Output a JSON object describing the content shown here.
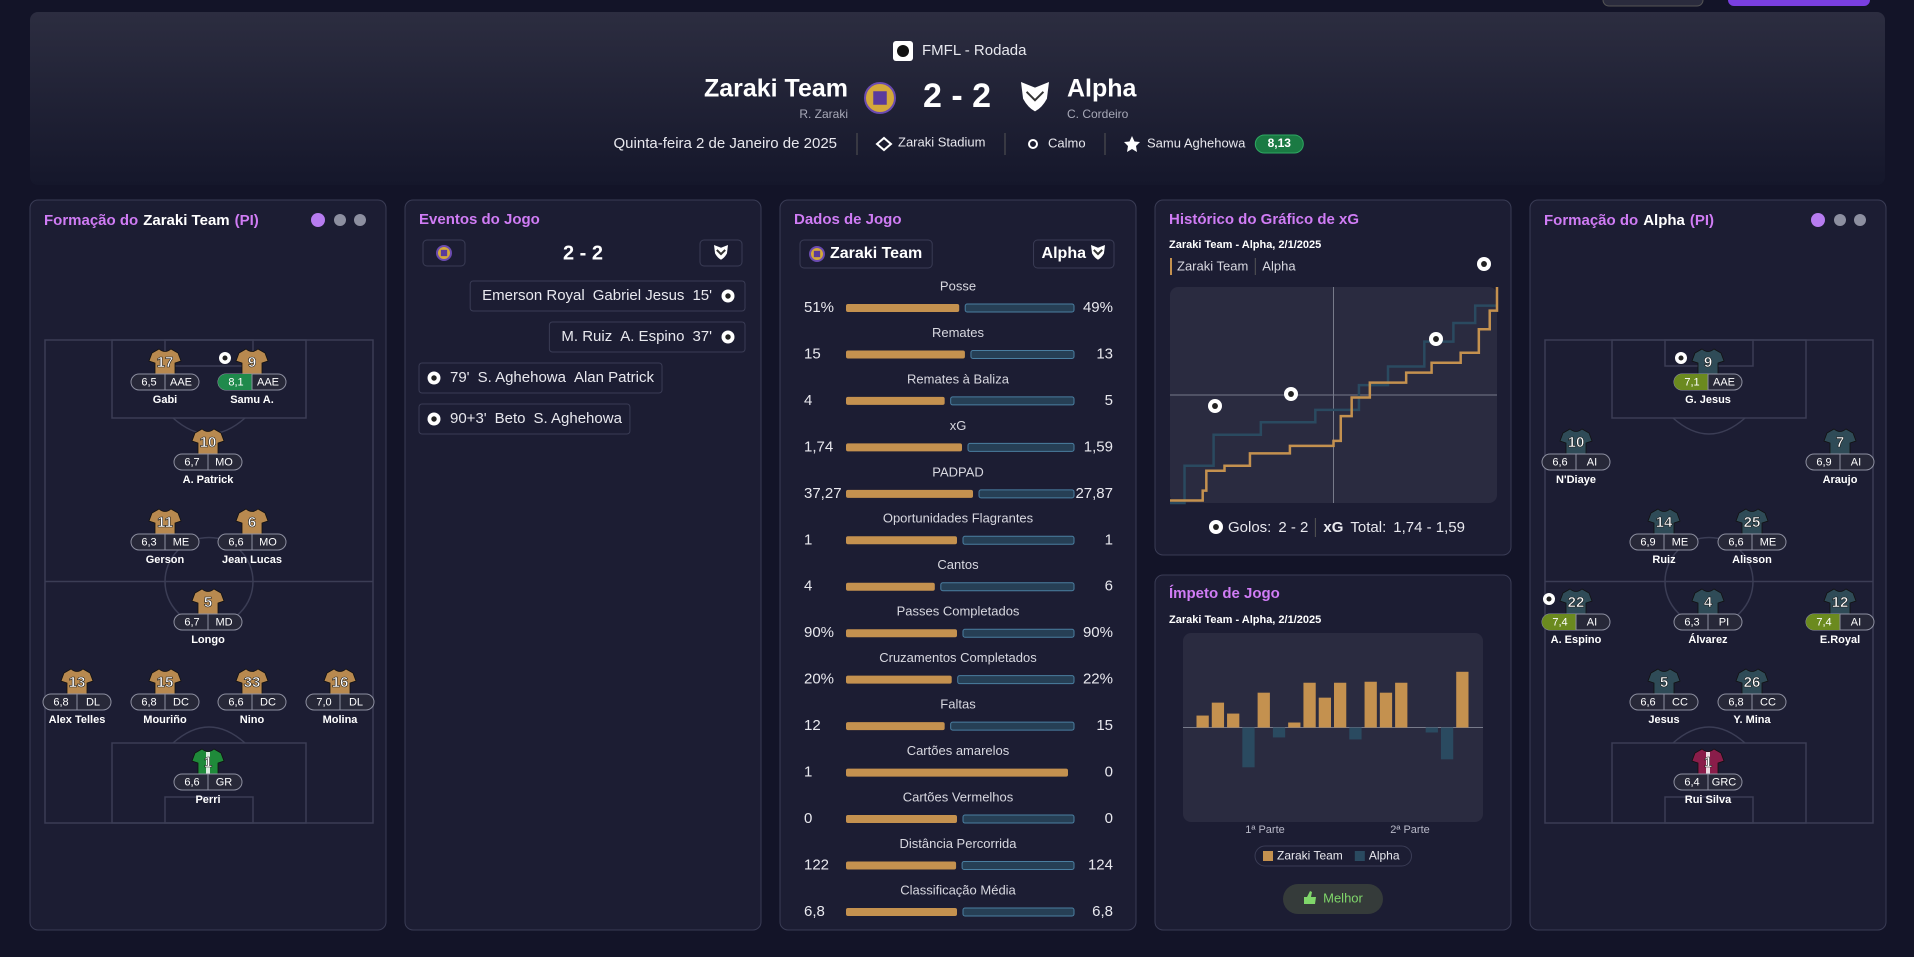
{
  "header": {
    "competition": "FMFL - Rodada",
    "home": {
      "name": "Zaraki Team",
      "manager": "R. Zaraki"
    },
    "score": "2 - 2",
    "away": {
      "name": "Alpha",
      "manager": "C. Cordeiro"
    },
    "date": "Quinta-feira 2 de Janeiro de 2025",
    "stadium": "Zaraki Stadium",
    "weather": "Calmo",
    "motm": "Samu Aghehowa",
    "motm_rating": "8,13"
  },
  "home_lineup": {
    "title": "Formação do",
    "team": "Zaraki Team",
    "formation": "(PI)",
    "kit": "#b8894f",
    "gk_kit": "#1f8a3a",
    "players": [
      {
        "number": "17",
        "rating": "6,5",
        "position": "AAE",
        "name": "Gabi"
      },
      {
        "number": "9",
        "rating": "8,1",
        "position": "AAE",
        "name": "Samu A.",
        "rating_color": "#1f8a4c"
      },
      {
        "number": "10",
        "rating": "6,7",
        "position": "MO",
        "name": "A. Patrick"
      },
      {
        "number": "11",
        "rating": "6,3",
        "position": "ME",
        "name": "Gerson"
      },
      {
        "number": "6",
        "rating": "6,6",
        "position": "MO",
        "name": "Jean Lucas"
      },
      {
        "number": "5",
        "rating": "6,7",
        "position": "MD",
        "name": "Longo"
      },
      {
        "number": "13",
        "rating": "6,8",
        "position": "DL",
        "name": "Alex Telles"
      },
      {
        "number": "15",
        "rating": "6,8",
        "position": "DC",
        "name": "Mouriño"
      },
      {
        "number": "33",
        "rating": "6,6",
        "position": "DC",
        "name": "Nino"
      },
      {
        "number": "16",
        "rating": "7,0",
        "position": "DL",
        "name": "Molina"
      },
      {
        "number": "1",
        "rating": "6,6",
        "position": "GR",
        "name": "Perri"
      }
    ]
  },
  "away_lineup": {
    "title": "Formação do",
    "team": "Alpha",
    "formation": "(PI)",
    "kit": "#2f4b57",
    "gk_kit": "#8a1d4a",
    "players": [
      {
        "number": "9",
        "rating": "7,1",
        "position": "AAE",
        "name": "G. Jesus",
        "rating_color": "#6b8a1f"
      },
      {
        "number": "10",
        "rating": "6,6",
        "position": "AI",
        "name": "N'Diaye"
      },
      {
        "number": "7",
        "rating": "6,9",
        "position": "AI",
        "name": "Araujo"
      },
      {
        "number": "14",
        "rating": "6,9",
        "position": "ME",
        "name": "Ruiz"
      },
      {
        "number": "25",
        "rating": "6,6",
        "position": "ME",
        "name": "Alisson"
      },
      {
        "number": "22",
        "rating": "7,4",
        "position": "AI",
        "name": "A. Espino",
        "rating_color": "#6b8a1f"
      },
      {
        "number": "4",
        "rating": "6,3",
        "position": "PI",
        "name": "Álvarez"
      },
      {
        "number": "12",
        "rating": "7,4",
        "position": "AI",
        "name": "E.Royal",
        "rating_color": "#6b8a1f"
      },
      {
        "number": "5",
        "rating": "6,6",
        "position": "CC",
        "name": "Jesus"
      },
      {
        "number": "26",
        "rating": "6,8",
        "position": "CC",
        "name": "Y. Mina"
      },
      {
        "number": "1",
        "rating": "6,4",
        "position": "GRC",
        "name": "Rui Silva"
      }
    ]
  },
  "events": {
    "title": "Eventos do Jogo",
    "score": "2 - 2",
    "away": [
      {
        "assist": "Emerson Royal",
        "player": "Gabriel Jesus",
        "minute": "15'"
      },
      {
        "assist": "M. Ruiz",
        "player": "A. Espino",
        "minute": "37'"
      }
    ],
    "home": [
      {
        "minute": "79'",
        "player": "S. Aghehowa",
        "assist": "Alan Patrick"
      },
      {
        "minute": "90+3'",
        "player": "Beto",
        "assist": "S. Aghehowa"
      }
    ]
  },
  "stats": {
    "title": "Dados de Jogo",
    "home": "Zaraki Team",
    "away": "Alpha",
    "home_color": "#c4914f",
    "away_color": "#263f55",
    "rows": [
      {
        "label": "Posse",
        "home": "51%",
        "away": "49%"
      },
      {
        "label": "Remates",
        "home": "15",
        "away": "13"
      },
      {
        "label": "Remates à Baliza",
        "home": "4",
        "away": "5"
      },
      {
        "label": "xG",
        "home": "1,74",
        "away": "1,59"
      },
      {
        "label": "PADPAD",
        "home": "37,27",
        "away": "27,87"
      },
      {
        "label": "Oportunidades Flagrantes",
        "home": "1",
        "away": "1"
      },
      {
        "label": "Cantos",
        "home": "4",
        "away": "6"
      },
      {
        "label": "Passes Completados",
        "home": "90%",
        "away": "90%"
      },
      {
        "label": "Cruzamentos Completados",
        "home": "20%",
        "away": "22%"
      },
      {
        "label": "Faltas",
        "home": "12",
        "away": "15"
      },
      {
        "label": "Cartões amarelos",
        "home": "1",
        "away": "0"
      },
      {
        "label": "Cartões Vermelhos",
        "home": "0",
        "away": "0"
      },
      {
        "label": "Distância Percorrida",
        "home": "122",
        "away": "124"
      },
      {
        "label": "Classificação Média",
        "home": "6,8",
        "away": "6,8"
      }
    ]
  },
  "xg": {
    "title": "Histórico do Gráfico de xG",
    "subtitle": "Zaraki Team - Alpha, 2/1/2025",
    "xlim": [
      0,
      90
    ],
    "ylim": [
      0,
      1.74
    ],
    "series": [
      {
        "name": "Zaraki Team",
        "color": "#c4914f",
        "x": [
          0,
          9,
          9,
          10,
          10,
          15,
          15,
          22,
          22,
          33,
          33,
          45,
          45,
          47,
          47,
          50,
          50,
          55,
          55,
          65,
          65,
          72,
          72,
          80,
          80,
          85,
          85,
          88,
          88,
          90,
          90
        ],
        "values": [
          0.02,
          0.02,
          0.1,
          0.1,
          0.26,
          0.26,
          0.3,
          0.3,
          0.4,
          0.4,
          0.46,
          0.46,
          0.5,
          0.5,
          0.7,
          0.7,
          0.85,
          0.85,
          0.97,
          0.97,
          1.05,
          1.05,
          1.13,
          1.13,
          1.21,
          1.21,
          1.4,
          1.4,
          1.55,
          1.55,
          1.74
        ]
      },
      {
        "name": "Alpha",
        "color": "#2a4a60",
        "x": [
          0,
          4,
          4,
          12,
          12,
          25,
          25,
          40,
          40,
          52,
          52,
          60,
          60,
          70,
          70,
          78,
          78,
          84,
          84,
          90
        ],
        "values": [
          0,
          0,
          0.3,
          0.3,
          0.55,
          0.55,
          0.65,
          0.65,
          0.75,
          0.75,
          0.95,
          0.95,
          1.1,
          1.1,
          1.3,
          1.3,
          1.45,
          1.45,
          1.59,
          1.59
        ]
      }
    ],
    "footer": {
      "goals_label": "Golos:",
      "goals": "2 - 2",
      "xg_label": "xG",
      "total_label": "Total:",
      "total": "1,74 - 1,59"
    }
  },
  "momentum": {
    "title": "Ímpeto de Jogo",
    "subtitle": "Zaraki Team - Alpha, 2/1/2025",
    "ylim": [
      -95,
      95
    ],
    "values": [
      12,
      25,
      14,
      -40,
      35,
      -10,
      5,
      45,
      30,
      45,
      -12,
      46,
      35,
      45,
      0,
      -5,
      -32,
      56
    ],
    "x_labels": [
      "1ª Parte",
      "2ª Parte"
    ],
    "legend": [
      {
        "name": "Zaraki Team",
        "color": "#c4914f"
      },
      {
        "name": "Alpha",
        "color": "#2a4a60"
      }
    ],
    "button": "Melhor"
  }
}
